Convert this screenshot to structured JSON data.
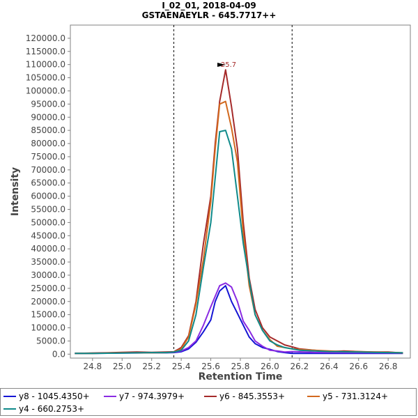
{
  "chart_data": {
    "type": "line",
    "title": [
      "I_02_01, 2018-04-09",
      "GSTAENAEYLR - 645.7717++"
    ],
    "xlabel": "Retention Time",
    "ylabel": "Intensity",
    "xlim": [
      24.65,
      26.95
    ],
    "ylim": [
      -1500,
      125000
    ],
    "xticks": [
      "24.8",
      "25.0",
      "25.2",
      "25.4",
      "25.6",
      "25.8",
      "26.0",
      "26.2",
      "26.4",
      "26.6",
      "26.8"
    ],
    "yticks": [
      "0.0",
      "5000.0",
      "10000.0",
      "15000.0",
      "20000.0",
      "25000.0",
      "30000.0",
      "35000.0",
      "40000.0",
      "45000.0",
      "50000.0",
      "55000.0",
      "60000.0",
      "65000.0",
      "70000.0",
      "75000.0",
      "80000.0",
      "85000.0",
      "90000.0",
      "95000.0",
      "100000.0",
      "105000.0",
      "110000.0",
      "115000.0",
      "120000.0"
    ],
    "boundaries": [
      25.35,
      26.15
    ],
    "annotation": {
      "label": "25.7",
      "x": 25.72,
      "y": 107800,
      "color": "#a52a2a"
    },
    "series": [
      {
        "name": "y8 - 1045.4350+",
        "color": "#1414d4",
        "points": [
          [
            24.68,
            300
          ],
          [
            24.8,
            300
          ],
          [
            24.9,
            350
          ],
          [
            25.0,
            400
          ],
          [
            25.1,
            450
          ],
          [
            25.2,
            500
          ],
          [
            25.3,
            500
          ],
          [
            25.35,
            600
          ],
          [
            25.4,
            900
          ],
          [
            25.45,
            2000
          ],
          [
            25.5,
            4500
          ],
          [
            25.55,
            8500
          ],
          [
            25.6,
            13000
          ],
          [
            25.63,
            20000
          ],
          [
            25.66,
            24000
          ],
          [
            25.7,
            26000
          ],
          [
            25.74,
            20000
          ],
          [
            25.78,
            15500
          ],
          [
            25.82,
            11000
          ],
          [
            25.86,
            6500
          ],
          [
            25.9,
            4000
          ],
          [
            25.95,
            2500
          ],
          [
            26.0,
            1800
          ],
          [
            26.05,
            1000
          ],
          [
            26.1,
            600
          ],
          [
            26.15,
            300
          ],
          [
            26.3,
            300
          ],
          [
            26.5,
            300
          ],
          [
            26.7,
            300
          ],
          [
            26.9,
            300
          ]
        ]
      },
      {
        "name": "y7 - 974.3979+",
        "color": "#8a2be2",
        "points": [
          [
            24.68,
            300
          ],
          [
            24.8,
            350
          ],
          [
            24.9,
            400
          ],
          [
            25.0,
            500
          ],
          [
            25.1,
            500
          ],
          [
            25.2,
            550
          ],
          [
            25.3,
            600
          ],
          [
            25.35,
            700
          ],
          [
            25.4,
            1200
          ],
          [
            25.45,
            2500
          ],
          [
            25.5,
            5000
          ],
          [
            25.55,
            11000
          ],
          [
            25.6,
            18000
          ],
          [
            25.63,
            22000
          ],
          [
            25.66,
            26000
          ],
          [
            25.7,
            27000
          ],
          [
            25.74,
            25500
          ],
          [
            25.78,
            20000
          ],
          [
            25.82,
            12500
          ],
          [
            25.86,
            9000
          ],
          [
            25.9,
            5000
          ],
          [
            25.95,
            3000
          ],
          [
            26.0,
            1500
          ],
          [
            26.05,
            1200
          ],
          [
            26.1,
            800
          ],
          [
            26.15,
            1000
          ],
          [
            26.3,
            700
          ],
          [
            26.5,
            600
          ],
          [
            26.7,
            500
          ],
          [
            26.9,
            400
          ]
        ]
      },
      {
        "name": "y6 - 845.3553+",
        "color": "#a52a2a",
        "points": [
          [
            24.68,
            300
          ],
          [
            24.8,
            400
          ],
          [
            24.9,
            500
          ],
          [
            25.0,
            700
          ],
          [
            25.1,
            800
          ],
          [
            25.2,
            700
          ],
          [
            25.3,
            800
          ],
          [
            25.35,
            900
          ],
          [
            25.4,
            2500
          ],
          [
            25.45,
            7000
          ],
          [
            25.5,
            20000
          ],
          [
            25.55,
            42000
          ],
          [
            25.6,
            60000
          ],
          [
            25.63,
            80000
          ],
          [
            25.66,
            96000
          ],
          [
            25.7,
            108000
          ],
          [
            25.74,
            94000
          ],
          [
            25.78,
            78000
          ],
          [
            25.82,
            50000
          ],
          [
            25.86,
            29000
          ],
          [
            25.9,
            17000
          ],
          [
            25.95,
            10000
          ],
          [
            26.0,
            6500
          ],
          [
            26.05,
            5000
          ],
          [
            26.1,
            3500
          ],
          [
            26.15,
            2800
          ],
          [
            26.2,
            2000
          ],
          [
            26.3,
            1500
          ],
          [
            26.4,
            1000
          ],
          [
            26.5,
            1200
          ],
          [
            26.6,
            1000
          ],
          [
            26.7,
            800
          ],
          [
            26.8,
            800
          ],
          [
            26.9,
            400
          ]
        ]
      },
      {
        "name": "y5 - 731.3124+",
        "color": "#d2691e",
        "points": [
          [
            24.68,
            300
          ],
          [
            24.8,
            300
          ],
          [
            24.9,
            400
          ],
          [
            25.0,
            500
          ],
          [
            25.1,
            500
          ],
          [
            25.2,
            500
          ],
          [
            25.3,
            600
          ],
          [
            25.35,
            800
          ],
          [
            25.4,
            2000
          ],
          [
            25.45,
            6500
          ],
          [
            25.5,
            19000
          ],
          [
            25.55,
            36000
          ],
          [
            25.6,
            58000
          ],
          [
            25.63,
            78000
          ],
          [
            25.66,
            95000
          ],
          [
            25.7,
            96000
          ],
          [
            25.74,
            86000
          ],
          [
            25.78,
            73000
          ],
          [
            25.82,
            46000
          ],
          [
            25.86,
            26000
          ],
          [
            25.9,
            15000
          ],
          [
            25.95,
            9000
          ],
          [
            26.0,
            5500
          ],
          [
            26.05,
            3000
          ],
          [
            26.1,
            2500
          ],
          [
            26.15,
            2000
          ],
          [
            26.2,
            1800
          ],
          [
            26.3,
            1500
          ],
          [
            26.4,
            1200
          ],
          [
            26.5,
            1000
          ],
          [
            26.6,
            900
          ],
          [
            26.7,
            800
          ],
          [
            26.8,
            700
          ],
          [
            26.9,
            500
          ]
        ]
      },
      {
        "name": "y4 - 660.2753+",
        "color": "#0f8a8a",
        "points": [
          [
            24.68,
            300
          ],
          [
            24.8,
            300
          ],
          [
            24.9,
            350
          ],
          [
            25.0,
            400
          ],
          [
            25.1,
            500
          ],
          [
            25.2,
            600
          ],
          [
            25.3,
            600
          ],
          [
            25.35,
            800
          ],
          [
            25.4,
            1500
          ],
          [
            25.45,
            5000
          ],
          [
            25.5,
            15000
          ],
          [
            25.55,
            33000
          ],
          [
            25.6,
            50000
          ],
          [
            25.63,
            67000
          ],
          [
            25.66,
            84500
          ],
          [
            25.7,
            85000
          ],
          [
            25.74,
            78000
          ],
          [
            25.78,
            60000
          ],
          [
            25.82,
            42000
          ],
          [
            25.86,
            28000
          ],
          [
            25.9,
            15000
          ],
          [
            25.95,
            9000
          ],
          [
            26.0,
            5000
          ],
          [
            26.05,
            3500
          ],
          [
            26.1,
            2500
          ],
          [
            26.15,
            2000
          ],
          [
            26.2,
            1500
          ],
          [
            26.3,
            1200
          ],
          [
            26.4,
            1000
          ],
          [
            26.5,
            900
          ],
          [
            26.6,
            800
          ],
          [
            26.7,
            700
          ],
          [
            26.8,
            600
          ],
          [
            26.9,
            500
          ]
        ]
      }
    ]
  }
}
